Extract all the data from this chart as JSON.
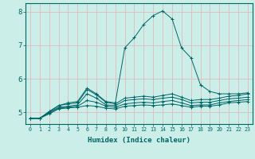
{
  "title": "",
  "xlabel": "Humidex (Indice chaleur)",
  "bg_color": "#cceee8",
  "grid_color": "#ddbbbb",
  "line_color": "#006666",
  "marker": "+",
  "xlim": [
    -0.5,
    23.5
  ],
  "ylim": [
    4.65,
    8.25
  ],
  "yticks": [
    5,
    6,
    7,
    8
  ],
  "xticks": [
    0,
    1,
    2,
    3,
    4,
    5,
    6,
    7,
    8,
    9,
    10,
    11,
    12,
    13,
    14,
    15,
    16,
    17,
    18,
    19,
    20,
    21,
    22,
    23
  ],
  "series": [
    [
      4.82,
      4.82,
      4.95,
      5.1,
      5.13,
      5.15,
      5.2,
      5.18,
      5.12,
      5.1,
      5.18,
      5.2,
      5.22,
      5.2,
      5.22,
      5.25,
      5.2,
      5.15,
      5.18,
      5.18,
      5.22,
      5.28,
      5.3,
      5.32
    ],
    [
      4.82,
      4.82,
      4.98,
      5.12,
      5.15,
      5.18,
      5.35,
      5.3,
      5.18,
      5.15,
      5.25,
      5.28,
      5.3,
      5.28,
      5.32,
      5.35,
      5.28,
      5.2,
      5.22,
      5.22,
      5.28,
      5.32,
      5.35,
      5.38
    ],
    [
      4.82,
      4.82,
      5.0,
      5.15,
      5.18,
      5.22,
      5.55,
      5.42,
      5.22,
      5.2,
      5.35,
      5.38,
      5.4,
      5.38,
      5.42,
      5.45,
      5.38,
      5.28,
      5.3,
      5.3,
      5.35,
      5.4,
      5.42,
      5.45
    ],
    [
      4.82,
      4.82,
      5.02,
      5.2,
      5.25,
      5.28,
      5.68,
      5.52,
      5.3,
      5.25,
      5.42,
      5.45,
      5.48,
      5.45,
      5.5,
      5.55,
      5.45,
      5.35,
      5.38,
      5.38,
      5.42,
      5.48,
      5.5,
      5.55
    ],
    [
      4.82,
      4.82,
      5.02,
      5.2,
      5.28,
      5.32,
      5.72,
      5.55,
      5.32,
      5.28,
      6.92,
      7.22,
      7.62,
      7.88,
      8.02,
      7.78,
      6.92,
      6.62,
      5.82,
      5.62,
      5.55,
      5.55,
      5.55,
      5.58
    ]
  ]
}
